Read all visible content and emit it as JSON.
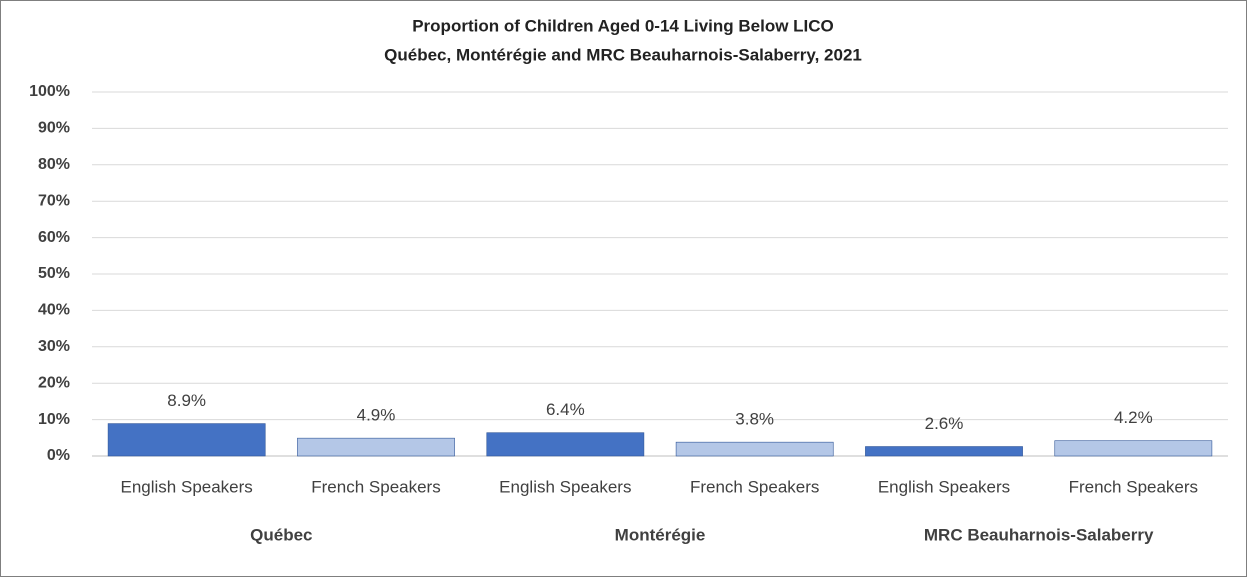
{
  "chart_data": {
    "type": "bar",
    "title": "Proportion of Children Aged 0-14 Living Below LICO",
    "subtitle": "Québec, Montérégie and MRC Beauharnois-Salaberry,  2021",
    "categories": [
      "English Speakers",
      "French Speakers",
      "English Speakers",
      "French Speakers",
      "English Speakers",
      "French Speakers"
    ],
    "groups": [
      "Québec",
      "Montérégie",
      "MRC Beauharnois-Salaberry"
    ],
    "values": [
      8.9,
      4.9,
      6.4,
      3.8,
      2.6,
      4.2
    ],
    "value_labels": [
      "8.9%",
      "4.9%",
      "6.4%",
      "3.8%",
      "2.6%",
      "4.2%"
    ],
    "colors": [
      "#4472c4",
      "#b4c7e7",
      "#4472c4",
      "#b4c7e7",
      "#4472c4",
      "#b4c7e7"
    ],
    "ylim": [
      0,
      100
    ],
    "yticks": [
      {
        "value": 0,
        "label": "0%"
      },
      {
        "value": 10,
        "label": "10%"
      },
      {
        "value": 20,
        "label": "20%"
      },
      {
        "value": 30,
        "label": "30%"
      },
      {
        "value": 40,
        "label": "40%"
      },
      {
        "value": 50,
        "label": "50%"
      },
      {
        "value": 60,
        "label": "60%"
      },
      {
        "value": 70,
        "label": "70%"
      },
      {
        "value": 80,
        "label": "80%"
      },
      {
        "value": 90,
        "label": "90%"
      },
      {
        "value": 100,
        "label": "100%"
      }
    ],
    "grid": true
  }
}
